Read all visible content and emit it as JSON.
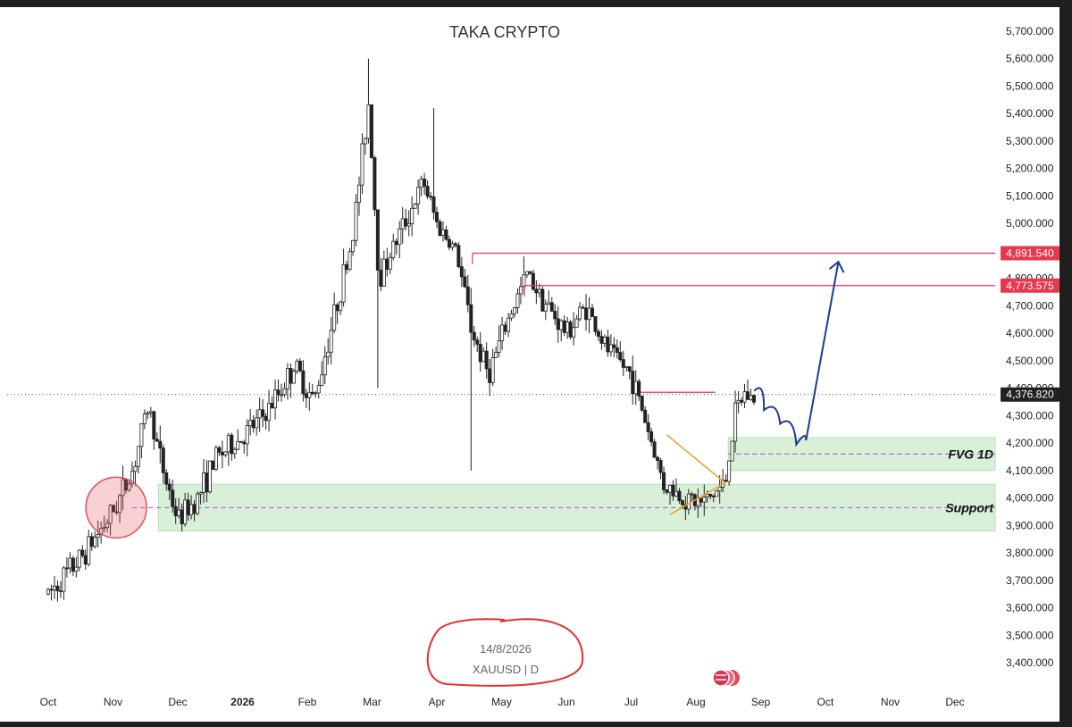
{
  "chart_data": {
    "type": "candlestick",
    "title": "TAKA CRYPTO",
    "symbol": "XAUUSD",
    "interval": "D",
    "date": "14/8/2026",
    "y_range": [
      3400,
      5700
    ],
    "y_ticks": [
      3400,
      3500,
      3600,
      3700,
      3800,
      3900,
      4000,
      4100,
      4200,
      4300,
      4400,
      4500,
      4600,
      4700,
      4800,
      4900,
      5000,
      5100,
      5200,
      5300,
      5400,
      5500,
      5600,
      5700
    ],
    "y_tick_labels": [
      "3,400.000",
      "3,500.000",
      "3,600.000",
      "3,700.000",
      "3,800.000",
      "3,900.000",
      "4,000.000",
      "4,100.000",
      "4,200.000",
      "4,300.000",
      "4,400.000",
      "4,500.000",
      "4,600.000",
      "4,700.000",
      "4,800.000",
      "4,900.000",
      "5,000.000",
      "5,100.000",
      "5,200.000",
      "5,300.000",
      "5,400.000",
      "5,500.000",
      "5,600.000",
      "5,700.000"
    ],
    "x_labels": [
      {
        "label": "Oct",
        "bold": false
      },
      {
        "label": "Nov",
        "bold": false
      },
      {
        "label": "Dec",
        "bold": false
      },
      {
        "label": "2026",
        "bold": true
      },
      {
        "label": "Feb",
        "bold": false
      },
      {
        "label": "Mar",
        "bold": false
      },
      {
        "label": "Apr",
        "bold": false
      },
      {
        "label": "May",
        "bold": false
      },
      {
        "label": "Jun",
        "bold": false
      },
      {
        "label": "Jul",
        "bold": false
      },
      {
        "label": "Aug",
        "bold": false
      },
      {
        "label": "Sep",
        "bold": false
      },
      {
        "label": "Oct",
        "bold": false
      },
      {
        "label": "Nov",
        "bold": false
      },
      {
        "label": "Dec",
        "bold": false
      }
    ],
    "price_path": [
      [
        0,
        3650
      ],
      [
        0.5,
        3780
      ],
      [
        1,
        3950
      ],
      [
        1.3,
        4100
      ],
      [
        1.55,
        4340
      ],
      [
        1.75,
        4120
      ],
      [
        2,
        3920
      ],
      [
        2.3,
        4000
      ],
      [
        2.6,
        4150
      ],
      [
        3,
        4220
      ],
      [
        3.4,
        4320
      ],
      [
        3.8,
        4480
      ],
      [
        4.1,
        4350
      ],
      [
        4.4,
        4650
      ],
      [
        4.7,
        4950
      ],
      [
        4.95,
        5450
      ],
      [
        5.1,
        4800
      ],
      [
        5.4,
        4950
      ],
      [
        5.8,
        5150
      ],
      [
        6,
        5000
      ],
      [
        6.3,
        4900
      ],
      [
        6.55,
        4600
      ],
      [
        6.8,
        4450
      ],
      [
        7.1,
        4650
      ],
      [
        7.4,
        4820
      ],
      [
        7.7,
        4700
      ],
      [
        8,
        4600
      ],
      [
        8.3,
        4700
      ],
      [
        8.6,
        4550
      ],
      [
        9,
        4450
      ],
      [
        9.2,
        4300
      ],
      [
        9.5,
        4050
      ],
      [
        9.8,
        4000
      ],
      [
        10.1,
        3980
      ],
      [
        10.45,
        4050
      ],
      [
        10.6,
        4300
      ],
      [
        10.75,
        4380
      ],
      [
        10.9,
        4360
      ]
    ],
    "wick_highs": [
      {
        "x": 4.95,
        "value": 5600
      },
      {
        "x": 5.97,
        "value": 5420
      },
      {
        "x": 7.35,
        "value": 4880
      }
    ],
    "wick_lows": [
      {
        "x": 5.1,
        "value": 4400
      },
      {
        "x": 6.55,
        "value": 4100
      }
    ],
    "last_price": {
      "value": 4376.82,
      "label": "4,376.820"
    },
    "levels": [
      {
        "value": 4891.54,
        "label": "4,891.540",
        "color": "#e53950"
      },
      {
        "value": 4773.575,
        "label": "4,773.575",
        "color": "#e53950"
      }
    ],
    "zones": [
      {
        "name": "FVG 1D",
        "from": 4100,
        "to": 4220,
        "mid": 4160,
        "color": "#d8f0d8"
      },
      {
        "name": "Support",
        "from": 3880,
        "to": 4050,
        "mid": 3965,
        "color": "#d8f0d8"
      }
    ],
    "triangle": {
      "apex": {
        "x": 10.45,
        "value": 4055
      },
      "top_start": {
        "x": 9.55,
        "value": 4230
      },
      "bottom_start": {
        "x": 9.6,
        "value": 3940
      }
    },
    "projection": [
      [
        10.9,
        4390
      ],
      [
        11.05,
        4320
      ],
      [
        11.3,
        4270
      ],
      [
        11.55,
        4195
      ],
      [
        11.7,
        4210
      ],
      [
        12.2,
        4860
      ]
    ],
    "colors": {
      "bull": "#ffffff",
      "bear": "#222222",
      "level": "#e53950",
      "projection": "#1a3c8f",
      "triangle": "#f0a030",
      "circle": "#e05060"
    }
  }
}
